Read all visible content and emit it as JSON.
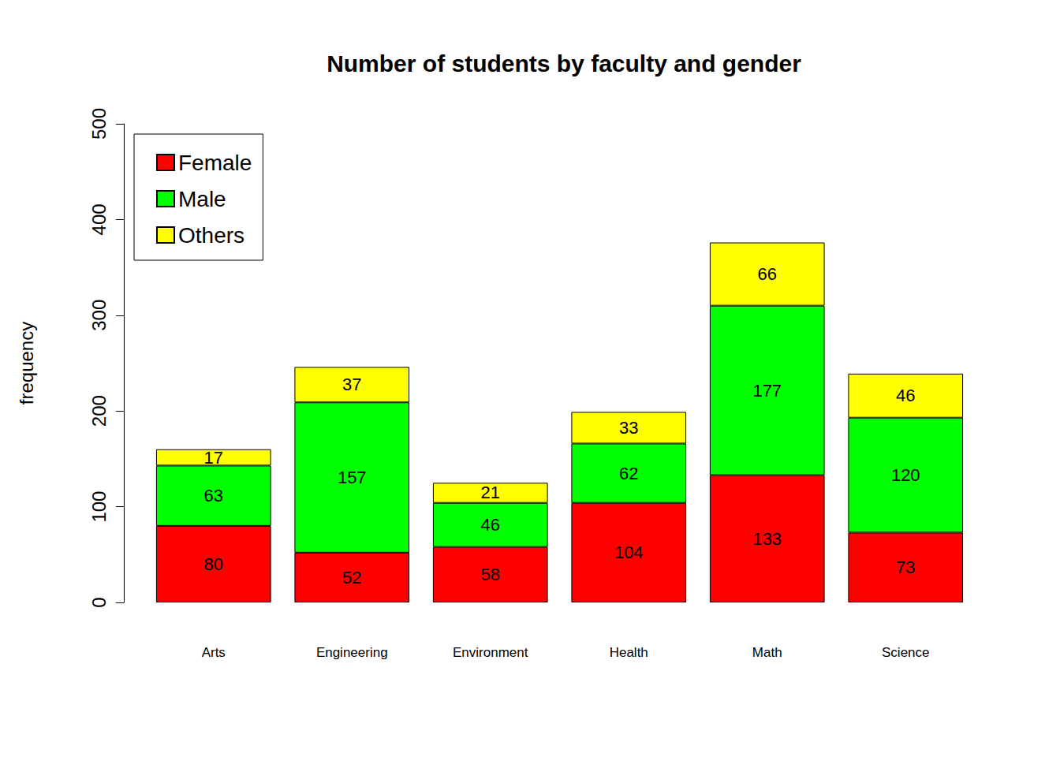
{
  "chart_data": {
    "type": "bar",
    "title": "Number of students by faculty and gender",
    "y_label": "frequency",
    "categories": [
      "Arts",
      "Engineering",
      "Environment",
      "Health",
      "Math",
      "Science"
    ],
    "series": [
      {
        "name": "Female",
        "color": "#ff0000",
        "values": [
          80,
          52,
          58,
          104,
          133,
          73
        ]
      },
      {
        "name": "Male",
        "color": "#00ff00",
        "values": [
          63,
          157,
          46,
          62,
          177,
          120
        ]
      },
      {
        "name": "Others",
        "color": "#ffff00",
        "values": [
          17,
          37,
          21,
          33,
          66,
          46
        ]
      }
    ],
    "ylim": [
      0,
      500
    ],
    "yticks": [
      0,
      100,
      200,
      300,
      400,
      500
    ],
    "stacked": true,
    "data_labels": true,
    "grid": false,
    "legend": "top-left"
  }
}
